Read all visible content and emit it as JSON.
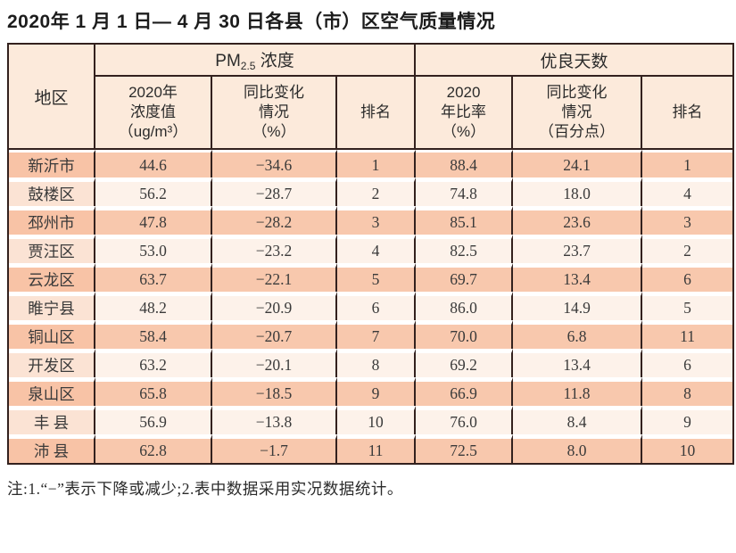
{
  "page": {
    "title": "2020年 1 月 1 日— 4 月 30 日各县（市）区空气质量情况",
    "note": "注:1.“−”表示下降或减少;2.表中数据采用实况数据统计。"
  },
  "colors": {
    "table_border": "#33211e",
    "header_bg": "#fceadb",
    "row_odd_bg": "#f8c8ad",
    "row_even_bg": "#fdf2ea",
    "row_even_region_bg": "#fbe3d4"
  },
  "table": {
    "region_header": "地区",
    "group_headers": {
      "pm25_prefix": "PM",
      "pm25_sub": "2.5",
      "pm25_suffix": " 浓度",
      "good_days": "优良天数"
    },
    "sub_headers": [
      "2020年\n浓度值\n（ug/m³）",
      "同比变化\n情况\n（%）",
      "排名",
      "2020\n年比率\n（%）",
      "同比变化\n情况\n（百分点）",
      "排名"
    ],
    "rows": [
      [
        "新沂市",
        "44.6",
        "−34.6",
        "1",
        "88.4",
        "24.1",
        "1"
      ],
      [
        "鼓楼区",
        "56.2",
        "−28.7",
        "2",
        "74.8",
        "18.0",
        "4"
      ],
      [
        "邳州市",
        "47.8",
        "−28.2",
        "3",
        "85.1",
        "23.6",
        "3"
      ],
      [
        "贾汪区",
        "53.0",
        "−23.2",
        "4",
        "82.5",
        "23.7",
        "2"
      ],
      [
        "云龙区",
        "63.7",
        "−22.1",
        "5",
        "69.7",
        "13.4",
        "6"
      ],
      [
        "睢宁县",
        "48.2",
        "−20.9",
        "6",
        "86.0",
        "14.9",
        "5"
      ],
      [
        "铜山区",
        "58.4",
        "−20.7",
        "7",
        "70.0",
        "6.8",
        "11"
      ],
      [
        "开发区",
        "63.2",
        "−20.1",
        "8",
        "69.2",
        "13.4",
        "6"
      ],
      [
        "泉山区",
        "65.8",
        "−18.5",
        "9",
        "66.9",
        "11.8",
        "8"
      ],
      [
        "丰 县",
        "56.9",
        "−13.8",
        "10",
        "76.0",
        "8.4",
        "9"
      ],
      [
        "沛 县",
        "62.8",
        "−1.7",
        "11",
        "72.5",
        "8.0",
        "10"
      ]
    ]
  },
  "chart_data": {
    "type": "table",
    "title": "2020年 1 月 1 日— 4 月 30 日各县（市）区空气质量情况",
    "columns": [
      "地区",
      "PM2.5 2020年浓度值(ug/m³)",
      "PM2.5 同比变化情况(%)",
      "PM2.5 排名",
      "优良天数 2020年比率(%)",
      "优良天数 同比变化情况(百分点)",
      "优良天数 排名"
    ],
    "rows": [
      [
        "新沂市",
        44.6,
        -34.6,
        1,
        88.4,
        24.1,
        1
      ],
      [
        "鼓楼区",
        56.2,
        -28.7,
        2,
        74.8,
        18.0,
        4
      ],
      [
        "邳州市",
        47.8,
        -28.2,
        3,
        85.1,
        23.6,
        3
      ],
      [
        "贾汪区",
        53.0,
        -23.2,
        4,
        82.5,
        23.7,
        2
      ],
      [
        "云龙区",
        63.7,
        -22.1,
        5,
        69.7,
        13.4,
        6
      ],
      [
        "睢宁县",
        48.2,
        -20.9,
        6,
        86.0,
        14.9,
        5
      ],
      [
        "铜山区",
        58.4,
        -20.7,
        7,
        70.0,
        6.8,
        11
      ],
      [
        "开发区",
        63.2,
        -20.1,
        8,
        69.2,
        13.4,
        6
      ],
      [
        "泉山区",
        65.8,
        -18.5,
        9,
        66.9,
        11.8,
        8
      ],
      [
        "丰县",
        56.9,
        -13.8,
        10,
        76.0,
        8.4,
        9
      ],
      [
        "沛县",
        62.8,
        -1.7,
        11,
        72.5,
        8.0,
        10
      ]
    ]
  }
}
